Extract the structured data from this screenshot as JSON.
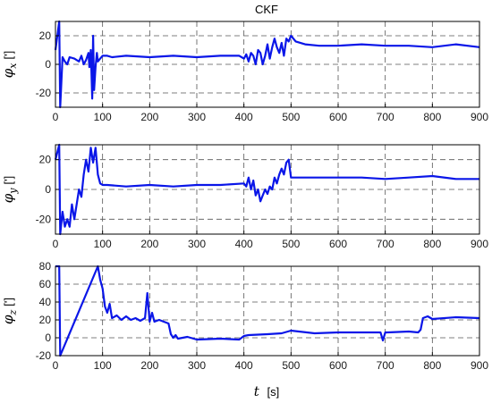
{
  "chart_data": [
    {
      "type": "line",
      "title": "CKF",
      "ylabel": "φx ['];",
      "ylabel_symbol": "φ",
      "ylabel_sub": "x",
      "ylabel_unit": "[']",
      "xlim": [
        0,
        900
      ],
      "ylim": [
        -30,
        30
      ],
      "xticks": [
        0,
        100,
        200,
        300,
        400,
        500,
        600,
        700,
        800,
        900
      ],
      "yticks": [
        -20,
        0,
        20
      ],
      "grid": true,
      "series": [
        {
          "x": [
            0,
            8,
            10,
            15,
            20,
            25,
            30,
            40,
            50,
            55,
            60,
            65,
            70,
            72,
            75,
            78,
            80,
            82,
            85,
            88,
            90,
            95,
            100,
            110,
            120,
            150,
            200,
            250,
            300,
            350,
            390,
            400,
            405,
            410,
            415,
            420,
            425,
            430,
            435,
            440,
            445,
            450,
            455,
            460,
            465,
            470,
            475,
            480,
            485,
            490,
            495,
            500,
            510,
            530,
            560,
            600,
            650,
            700,
            750,
            800,
            850,
            900
          ],
          "y": [
            10,
            30,
            -30,
            5,
            2,
            0,
            5,
            4,
            2,
            6,
            0,
            3,
            8,
            -2,
            10,
            -24,
            20,
            -18,
            -2,
            8,
            2,
            4,
            6,
            6,
            5,
            6,
            5,
            6,
            5,
            6,
            6,
            4,
            7,
            2,
            8,
            6,
            0,
            10,
            8,
            0,
            6,
            14,
            4,
            12,
            18,
            12,
            8,
            15,
            6,
            18,
            16,
            20,
            16,
            14,
            13,
            13,
            14,
            13,
            13,
            12,
            14,
            12
          ]
        }
      ]
    },
    {
      "type": "line",
      "title": "",
      "ylabel": "φy [']",
      "ylabel_symbol": "φ",
      "ylabel_sub": "y",
      "ylabel_unit": "[']",
      "xlim": [
        0,
        900
      ],
      "ylim": [
        -30,
        30
      ],
      "xticks": [
        0,
        100,
        200,
        300,
        400,
        500,
        600,
        700,
        800,
        900
      ],
      "yticks": [
        -20,
        0,
        20
      ],
      "grid": true,
      "series": [
        {
          "x": [
            0,
            8,
            10,
            15,
            20,
            25,
            30,
            35,
            40,
            45,
            50,
            55,
            60,
            65,
            70,
            75,
            80,
            85,
            90,
            95,
            100,
            110,
            150,
            200,
            250,
            300,
            350,
            400,
            405,
            410,
            415,
            420,
            425,
            430,
            435,
            440,
            445,
            450,
            455,
            460,
            465,
            470,
            475,
            480,
            485,
            490,
            495,
            500,
            550,
            600,
            650,
            700,
            750,
            800,
            850,
            900
          ],
          "y": [
            20,
            30,
            -30,
            -15,
            -25,
            -20,
            -25,
            -10,
            -20,
            -10,
            0,
            -5,
            10,
            20,
            12,
            28,
            18,
            28,
            10,
            4,
            3,
            3,
            2,
            3,
            2,
            3,
            3,
            4,
            2,
            8,
            0,
            6,
            -4,
            0,
            -8,
            -4,
            0,
            -3,
            2,
            0,
            8,
            4,
            10,
            14,
            10,
            18,
            20,
            8,
            8,
            8,
            8,
            7,
            8,
            9,
            7,
            7
          ]
        }
      ]
    },
    {
      "type": "line",
      "title": "",
      "ylabel": "φz [']",
      "ylabel_symbol": "φ",
      "ylabel_sub": "z",
      "ylabel_unit": "[']",
      "xlabel": "t [s]",
      "xlabel_symbol": "t",
      "xlabel_unit": "[s]",
      "xlim": [
        0,
        900
      ],
      "ylim": [
        -20,
        80
      ],
      "xticks": [
        0,
        100,
        200,
        300,
        400,
        500,
        600,
        700,
        800,
        900
      ],
      "yticks": [
        -20,
        0,
        20,
        40,
        60,
        80
      ],
      "grid": true,
      "series": [
        {
          "x": [
            0,
            8,
            10,
            90,
            95,
            100,
            105,
            110,
            115,
            120,
            130,
            140,
            150,
            160,
            170,
            180,
            190,
            195,
            200,
            205,
            210,
            220,
            230,
            240,
            245,
            250,
            255,
            260,
            280,
            300,
            350,
            390,
            400,
            410,
            450,
            480,
            500,
            550,
            600,
            650,
            690,
            695,
            700,
            705,
            750,
            770,
            775,
            780,
            790,
            800,
            850,
            900
          ],
          "y": [
            80,
            80,
            -20,
            80,
            65,
            55,
            35,
            28,
            38,
            22,
            25,
            20,
            24,
            20,
            22,
            19,
            22,
            50,
            18,
            28,
            18,
            20,
            18,
            16,
            4,
            0,
            3,
            -1,
            1,
            -2,
            -1,
            -2,
            2,
            3,
            4,
            5,
            8,
            5,
            6,
            6,
            6,
            -3,
            6,
            6,
            7,
            6,
            9,
            22,
            24,
            21,
            23,
            22
          ]
        }
      ]
    }
  ]
}
